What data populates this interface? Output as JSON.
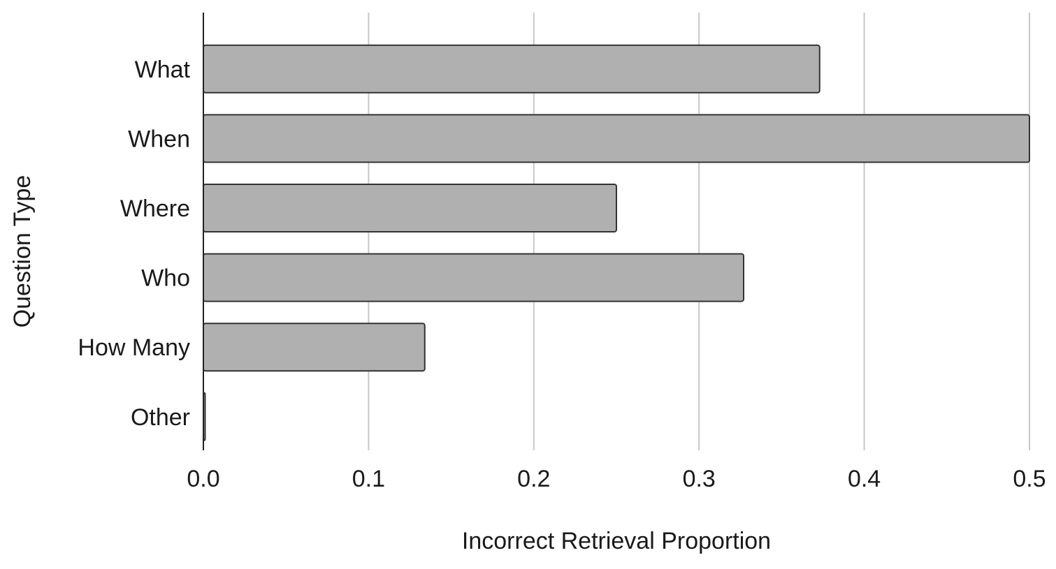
{
  "chart_data": {
    "type": "bar",
    "orientation": "horizontal",
    "categories": [
      "What",
      "When",
      "Where",
      "Who",
      "How Many",
      "Other"
    ],
    "values": [
      0.373,
      0.5,
      0.25,
      0.327,
      0.134,
      0.001
    ],
    "xlabel": "Incorrect Retrieval Proportion",
    "ylabel": "Question Type",
    "xlim": [
      0,
      0.5
    ],
    "x_ticks": [
      "0.0",
      "0.1",
      "0.2",
      "0.3",
      "0.4",
      "0.5"
    ],
    "grid": true,
    "legend": "none",
    "bar_color": "#b0b0b0",
    "bar_edge_color": "#333333"
  }
}
